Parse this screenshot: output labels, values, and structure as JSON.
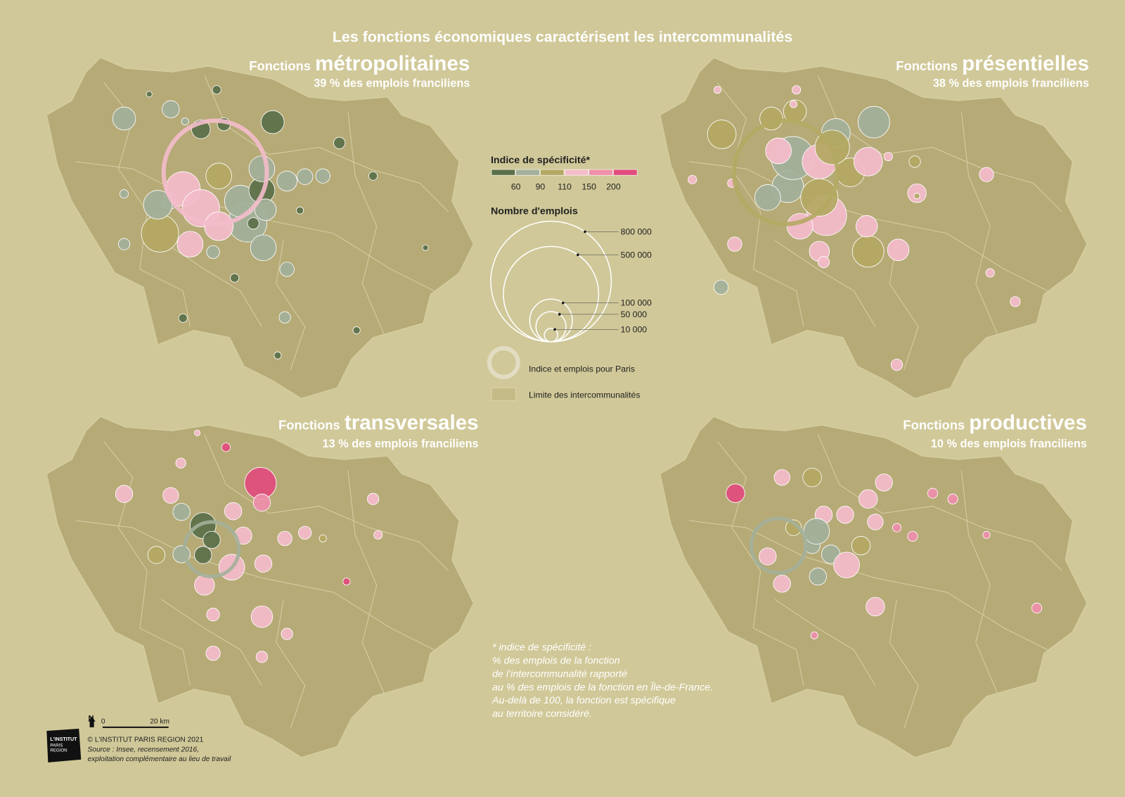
{
  "title": "Les fonctions économiques caractérisent les intercommunalités",
  "panels": [
    {
      "prefix": "Fonctions",
      "name": "métropolitaines",
      "subtitle": "39 % des emplois franciliens"
    },
    {
      "prefix": "Fonctions",
      "name": "présentielles",
      "subtitle": "38 % des emplois franciliens"
    },
    {
      "prefix": "Fonctions",
      "name": "transversales",
      "subtitle": "13 % des emplois franciliens"
    },
    {
      "prefix": "Fonctions",
      "name": "productives",
      "subtitle": "10 % des emplois franciliens"
    }
  ],
  "legend": {
    "color_title": "Indice de spécificité*",
    "colors": [
      "#5b7049",
      "#a3b09a",
      "#b4a863",
      "#f4bccb",
      "#ef8fab",
      "#e14c7c"
    ],
    "color_ticks": [
      60,
      90,
      110,
      150,
      200
    ],
    "size_title": "Nombre d'emplois",
    "size_ticks": [
      {
        "value": 800000,
        "label": "800 000"
      },
      {
        "value": 500000,
        "label": "500 000"
      },
      {
        "value": 100000,
        "label": "100 000"
      },
      {
        "value": 50000,
        "label": "50 000"
      },
      {
        "value": 10000,
        "label": "10 000"
      }
    ],
    "paris_label": "Indice et emplois pour Paris",
    "boundary_label": "Limite des intercommunalités"
  },
  "note": [
    "* indice de spécificité :",
    "% des emplois de la fonction",
    "de l’intercommunalité rapporté",
    "au % des emplois de la fonction en Île-de-France.",
    "Au-delà de 100, la fonction est spécifique",
    "au territoire considéré."
  ],
  "footer": {
    "north": "N",
    "scale_start": "0",
    "scale_end": "20 km",
    "logo": [
      "L'INSTITUT",
      "PARIS",
      "REGION"
    ],
    "copyright": "© L'INSTITUT PARIS REGION 2021",
    "source": [
      "Source : Insee, recensement 2016,",
      "exploitation complémentaire au lieu de travail"
    ]
  }
}
